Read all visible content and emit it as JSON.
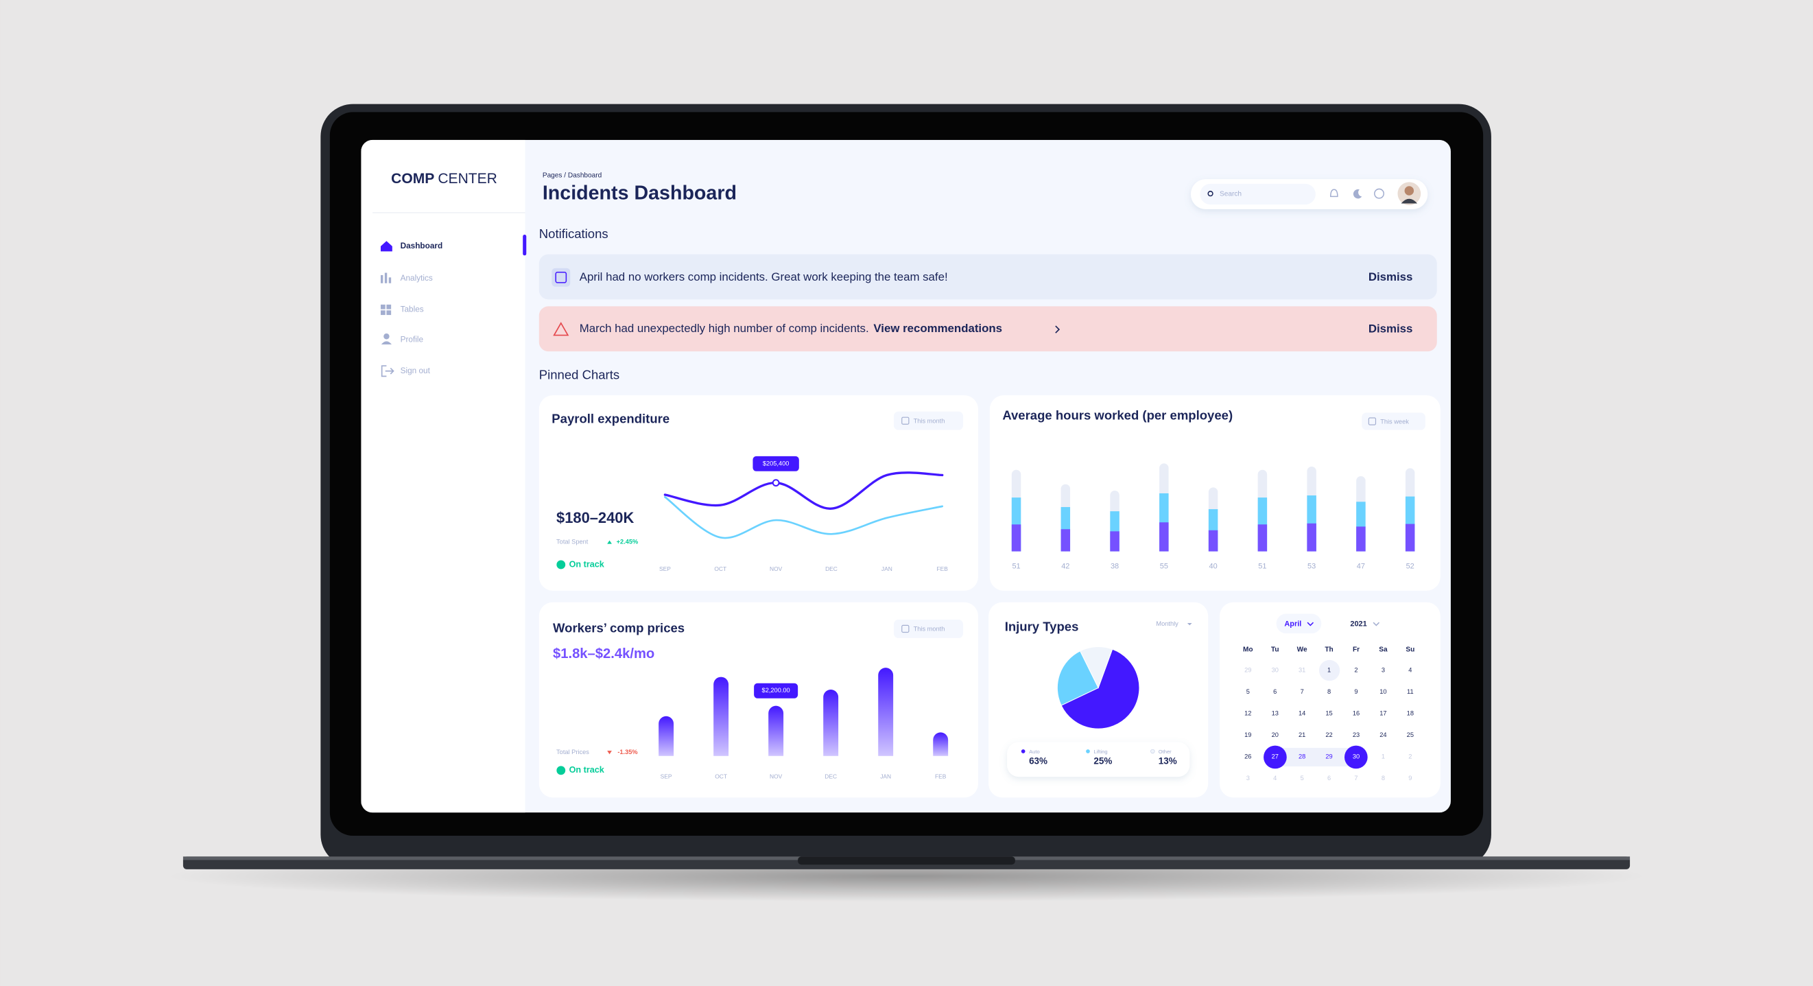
{
  "sidebar": {
    "brand_bold": "COMP",
    "brand": "CENTER",
    "nav": [
      "Dashboard",
      "Analytics",
      "Tables",
      "Profile",
      "Sign out"
    ]
  },
  "header": {
    "breadcrumb": "Pages / Dashboard",
    "title": "Incidents Dashboard",
    "search_placeholder": "Search"
  },
  "notifications": {
    "heading": "Notifications",
    "items": [
      {
        "text": "April had no workers comp incidents. Great work keeping the team safe!",
        "action": "Dismiss"
      },
      {
        "text": "March had unexpectedly high number of comp incidents.",
        "link": "View recommendations",
        "action": "Dismiss"
      }
    ]
  },
  "pinned_heading": "Pinned Charts",
  "payroll": {
    "type": "line",
    "title": "Payroll expenditure",
    "period": "This month",
    "range": "$180–240K",
    "caption": "Total Spent",
    "change": "+2.45%",
    "status": "On track",
    "tooltip": "$205,400",
    "categories": [
      "SEP",
      "OCT",
      "NOV",
      "DEC",
      "JAN",
      "FEB"
    ],
    "ylim": [
      140000,
      240000
    ],
    "series": [
      {
        "color": "#4318ff",
        "values": [
          192500,
          181250,
          205400,
          177500,
          213750,
          213750
        ]
      },
      {
        "color": "#6ad2ff",
        "values": [
          190000,
          146250,
          165000,
          150000,
          167500,
          180000
        ]
      }
    ]
  },
  "hours": {
    "type": "bar",
    "title": "Average hours worked (per employee)",
    "period": "This week",
    "values": [
      51,
      42,
      38,
      55,
      40,
      51,
      53,
      47,
      52
    ],
    "ylim": [
      0,
      60
    ],
    "colors": [
      "#7551ff",
      "#6ad2ff",
      "#e9edf7"
    ]
  },
  "comp_prices": {
    "type": "bar",
    "title": "Workers’ comp prices",
    "range": "$1.8k–$2.4k/mo",
    "period": "This month",
    "caption": "Total Prices",
    "change": "-1.35%",
    "status": "On track",
    "tooltip": "$2,200.00",
    "categories": [
      "SEP",
      "OCT",
      "NOV",
      "DEC",
      "JAN",
      "FEB"
    ],
    "values": [
      1740,
      3480,
      2200,
      2920,
      3890,
      1020
    ],
    "ylim": [
      0,
      4000
    ],
    "color": "#4318ff"
  },
  "injury": {
    "type": "pie",
    "title": "Injury Types",
    "period": "Monthly",
    "categories": [
      "Auto",
      "Lifting",
      "Other"
    ],
    "values": [
      63,
      25,
      13
    ],
    "value_labels": [
      "63%",
      "25%",
      "13%"
    ],
    "colors": [
      "#4318ff",
      "#6ad2ff",
      "#eff4fb"
    ]
  },
  "calendar": {
    "month": "April",
    "year": "2021",
    "weekdays": [
      "Mo",
      "Tu",
      "We",
      "Th",
      "Fr",
      "Sa",
      "Su"
    ],
    "weeks": [
      [
        29,
        30,
        31,
        1,
        2,
        3,
        4
      ],
      [
        5,
        6,
        7,
        8,
        9,
        10,
        11
      ],
      [
        12,
        13,
        14,
        15,
        16,
        17,
        18
      ],
      [
        19,
        20,
        21,
        22,
        23,
        24,
        25
      ],
      [
        26,
        27,
        28,
        29,
        30,
        1,
        2
      ],
      [
        3,
        4,
        5,
        6,
        7,
        8,
        9
      ]
    ]
  }
}
